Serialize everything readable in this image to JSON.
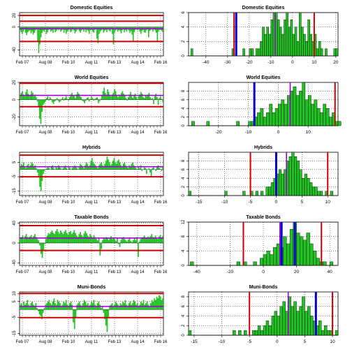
{
  "colors": {
    "bar_fill": "#22c022",
    "bar_stroke": "#000000",
    "outer_line": "#cc0000",
    "mean_line": "#9900cc",
    "hist_blue": "#0000cc",
    "grid": "#000000"
  },
  "time_axis_labels": [
    "Feb 07",
    "Aug 08",
    "Feb 10",
    "Aug 11",
    "Feb 13",
    "Aug 14",
    "Feb 16"
  ],
  "chart_data": [
    {
      "type": "bar",
      "title": "Domestic Equities",
      "xlabel": "",
      "ylabel": "",
      "ylim": [
        -50,
        25
      ],
      "yticks": [
        -40,
        0,
        20
      ],
      "grid": true,
      "series": [
        {
          "values": [
            -6,
            -9,
            -12,
            -8,
            -4,
            -10,
            -14,
            -9,
            -7,
            -6,
            -11,
            -8,
            -13,
            -10,
            -6,
            -4,
            -25,
            -45,
            -30,
            -18,
            -10,
            -6,
            -8,
            -4,
            -12,
            -9,
            -5,
            -3,
            -8,
            -6,
            -10,
            -4,
            -9,
            -7,
            -3,
            -5,
            -2,
            -8,
            -6,
            -4,
            -10,
            -5,
            -12,
            -8,
            -6,
            -3,
            -9,
            -7,
            -4,
            -6,
            -11,
            -8,
            -5,
            -2,
            -7,
            -10,
            -6,
            -4,
            -8,
            -3,
            -9,
            -5,
            -7,
            -12,
            -6,
            -4,
            -8,
            -10,
            -5,
            -3,
            -20,
            -28,
            -12,
            -8,
            -6,
            -4,
            -10,
            -7,
            -5,
            -9,
            -3,
            -6,
            -8,
            -4,
            -12,
            -30,
            -10,
            -6,
            -4,
            -8,
            -5,
            -7,
            -11,
            -6,
            -3,
            -9,
            -5,
            -8,
            -4,
            -6,
            -10,
            -7,
            -13,
            -25,
            -9,
            -5,
            -3,
            -6,
            -4,
            -8,
            -12,
            -7,
            -5,
            -9,
            -10,
            -6,
            -3,
            -18,
            -7,
            -5,
            -2,
            -8,
            -4,
            -6,
            -10,
            -25,
            -8,
            -5,
            -3,
            -7,
            -9
          ]
        }
      ],
      "ref_lines": {
        "red": [
          -25,
          10,
          20
        ],
        "purple": [
          -3
        ]
      }
    },
    {
      "type": "histogram",
      "title": "Domestic Equities",
      "xlim": [
        -48,
        21
      ],
      "xticks": [
        -40,
        -30,
        -20,
        -10,
        0,
        10,
        20
      ],
      "ylim": [
        0,
        6
      ],
      "yticks": [
        0,
        2,
        4,
        6
      ],
      "grid": true,
      "bin_width": 1,
      "bins_start": -47,
      "counts": [
        1,
        0,
        0,
        0,
        0,
        0,
        0,
        0,
        0,
        0,
        0,
        0,
        0,
        0,
        0,
        0,
        0,
        0,
        0,
        1,
        0,
        0,
        0,
        0,
        1,
        0,
        0,
        1,
        1,
        0,
        1,
        1,
        2,
        4,
        3,
        4,
        3,
        5,
        6,
        6,
        5,
        4,
        3,
        5,
        6,
        4,
        5,
        3,
        4,
        2,
        6,
        4,
        3,
        2,
        5,
        3,
        2,
        3,
        1,
        2,
        1,
        0,
        1,
        0,
        0,
        0,
        1,
        1
      ],
      "ref_lines": {
        "red": [
          -27,
          10
        ],
        "purple": [
          -8
        ],
        "blue": [
          -26
        ]
      }
    },
    {
      "type": "bar",
      "title": "World Equities",
      "xlabel": "",
      "ylabel": "",
      "ylim": [
        -30,
        20
      ],
      "yticks": [
        -20,
        0,
        20
      ],
      "grid": true,
      "series": [
        {
          "values": [
            5,
            8,
            10,
            6,
            4,
            9,
            12,
            7,
            5,
            6,
            10,
            8,
            4,
            6,
            3,
            -2,
            -8,
            -22,
            -28,
            -14,
            -6,
            -4,
            -2,
            2,
            4,
            -1,
            3,
            1,
            -3,
            -5,
            -2,
            -1,
            2,
            -1,
            -3,
            -2,
            1,
            3,
            -1,
            2,
            4,
            1,
            -1,
            3,
            6,
            8,
            5,
            4,
            2,
            6,
            9,
            7,
            4,
            3,
            -1,
            -2,
            -4,
            -1,
            2,
            3,
            -2,
            1,
            4,
            2,
            -1,
            1,
            2,
            3,
            -4,
            -2,
            1,
            5,
            10,
            14,
            8,
            6,
            12,
            9,
            5,
            4,
            6,
            8,
            12,
            10,
            5,
            3,
            6,
            4,
            8,
            10,
            7,
            5,
            2,
            -1,
            3,
            6,
            9,
            4,
            2,
            5,
            7,
            3,
            1,
            4,
            6,
            9,
            7,
            3,
            2,
            5,
            4,
            6,
            8,
            3,
            1,
            2,
            -5,
            4,
            7,
            3,
            -6,
            2,
            4,
            1,
            -3
          ]
        }
      ],
      "ref_lines": {
        "red": [
          -8,
          19
        ],
        "purple": [
          5
        ]
      }
    },
    {
      "type": "histogram",
      "title": "World Equities",
      "xlim": [
        -30,
        20
      ],
      "xticks": [
        -20,
        -10,
        0,
        10
      ],
      "ylim": [
        0,
        10
      ],
      "yticks": [
        0,
        2,
        4,
        6,
        8
      ],
      "grid": true,
      "bin_width": 1,
      "bins_start": -29,
      "counts": [
        1,
        0,
        0,
        0,
        0,
        1,
        0,
        0,
        0,
        0,
        0,
        0,
        0,
        0,
        0,
        1,
        0,
        0,
        0,
        1,
        1,
        2,
        3,
        4,
        2,
        3,
        5,
        3,
        4,
        5,
        6,
        5,
        7,
        8,
        9,
        7,
        8,
        10,
        6,
        7,
        5,
        6,
        4,
        3,
        5,
        4,
        2,
        3,
        1,
        1
      ],
      "ref_lines": {
        "red": [
          -8,
          19
        ],
        "purple": [
          4
        ],
        "blue": [
          -8
        ]
      }
    },
    {
      "type": "bar",
      "title": "Hybrids",
      "xlabel": "",
      "ylabel": "",
      "ylim": [
        -18,
        12
      ],
      "yticks": [
        -15,
        -5,
        5
      ],
      "grid": true,
      "series": [
        {
          "values": [
            2,
            4,
            3,
            5,
            2,
            1,
            3,
            4,
            2,
            3,
            5,
            4,
            2,
            3,
            1,
            -2,
            -5,
            -12,
            -15,
            -8,
            -3,
            -1,
            0,
            1,
            2,
            1,
            0,
            2,
            3,
            1,
            0,
            2,
            1,
            3,
            2,
            1,
            0,
            1,
            2,
            3,
            1,
            0,
            2,
            1,
            0,
            1,
            2,
            3,
            2,
            1,
            0,
            2,
            4,
            3,
            2,
            1,
            3,
            5,
            4,
            2,
            3,
            6,
            8,
            5,
            4,
            3,
            2,
            1,
            3,
            4,
            5,
            3,
            2,
            4,
            6,
            9,
            7,
            5,
            3,
            4,
            6,
            8,
            5,
            4,
            6,
            7,
            5,
            3,
            2,
            4,
            5,
            3,
            2,
            1,
            3,
            2,
            4,
            5,
            3,
            2,
            1,
            0,
            2,
            1,
            3,
            -1,
            0,
            2,
            1,
            -3,
            0,
            1,
            -2,
            -5,
            1,
            2,
            0,
            -1,
            2,
            3,
            1,
            0,
            -1,
            2
          ]
        }
      ],
      "ref_lines": {
        "red": [
          -5,
          10
        ],
        "purple": [
          2
        ]
      }
    },
    {
      "type": "histogram",
      "title": "Hybrids",
      "xlim": [
        -17,
        12
      ],
      "xticks": [
        -15,
        -10,
        -5,
        0,
        5,
        10
      ],
      "ylim": [
        0,
        10
      ],
      "yticks": [
        0,
        2,
        4,
        6,
        8
      ],
      "grid": true,
      "bin_width": 0.5,
      "bins_start": -17,
      "counts": [
        1,
        0,
        0,
        0,
        0,
        0,
        0,
        0,
        0,
        0,
        0,
        0,
        0,
        0,
        1,
        0,
        0,
        0,
        0,
        0,
        0,
        1,
        0,
        0,
        1,
        0,
        1,
        0,
        1,
        0,
        2,
        2,
        3,
        4,
        5,
        6,
        5,
        6,
        8,
        9,
        10,
        9,
        8,
        6,
        4,
        5,
        4,
        3,
        2,
        2,
        1,
        1,
        0,
        1,
        0,
        1,
        0
      ],
      "ref_lines": {
        "red": [
          -5,
          10
        ],
        "purple": [
          2
        ],
        "blue": [
          0
        ]
      }
    },
    {
      "type": "bar",
      "title": "Taxable Bonds",
      "xlabel": "",
      "ylabel": "",
      "ylim": [
        -45,
        42
      ],
      "yticks": [
        -40,
        0,
        40
      ],
      "grid": true,
      "series": [
        {
          "values": [
            10,
            12,
            15,
            8,
            14,
            18,
            12,
            9,
            13,
            16,
            10,
            14,
            18,
            12,
            8,
            5,
            -5,
            -22,
            -30,
            -15,
            -2,
            8,
            15,
            20,
            18,
            22,
            25,
            20,
            18,
            24,
            28,
            22,
            19,
            25,
            21,
            18,
            23,
            26,
            20,
            17,
            22,
            24,
            18,
            21,
            26,
            20,
            15,
            12,
            18,
            22,
            16,
            13,
            19,
            24,
            20,
            15,
            12,
            18,
            14,
            10,
            16,
            12,
            8,
            5,
            10,
            -25,
            -12,
            6,
            10,
            8,
            12,
            9,
            6,
            10,
            14,
            8,
            11,
            7,
            4,
            10,
            -2,
            -8,
            6,
            9,
            12,
            8,
            5,
            3,
            7,
            10,
            4,
            2,
            6,
            9,
            5,
            12,
            -28,
            3,
            8,
            10,
            12,
            15,
            9,
            11,
            13,
            10,
            14,
            18,
            12,
            9,
            15,
            11,
            8,
            13,
            16,
            10,
            14
          ]
        }
      ],
      "ref_lines": {
        "red": [
          -15,
          35
        ],
        "purple": [
          10
        ]
      }
    },
    {
      "type": "histogram",
      "title": "Taxable Bonds",
      "xlim": [
        -45,
        45
      ],
      "xticks": [
        -40,
        -20,
        0,
        20,
        40
      ],
      "ylim": [
        0,
        12
      ],
      "yticks": [
        0,
        4,
        8,
        12
      ],
      "grid": true,
      "bin_width": 2,
      "bins_start": -44,
      "counts": [
        1,
        0,
        0,
        0,
        0,
        0,
        0,
        0,
        0,
        0,
        0,
        0,
        0,
        0,
        1,
        0,
        1,
        0,
        0,
        1,
        0,
        2,
        3,
        4,
        3,
        5,
        6,
        5,
        8,
        6,
        10,
        12,
        9,
        8,
        7,
        9,
        6,
        4,
        2,
        1,
        1,
        0,
        1,
        0,
        0
      ],
      "ref_lines": {
        "red": [
          -12,
          35
        ],
        "purple": [
          10
        ],
        "blue": [
          11,
          19
        ]
      }
    },
    {
      "type": "bar",
      "title": "Muni-Bonds",
      "xlabel": "",
      "ylabel": "",
      "ylim": [
        -16,
        11
      ],
      "yticks": [
        -15,
        -5,
        5,
        10
      ],
      "grid": true,
      "series": [
        {
          "values": [
            3,
            4,
            2,
            5,
            3,
            4,
            6,
            3,
            2,
            4,
            5,
            3,
            2,
            4,
            1,
            -1,
            -3,
            -4,
            -6,
            -2,
            1,
            3,
            4,
            5,
            6,
            4,
            3,
            5,
            7,
            4,
            3,
            6,
            5,
            4,
            2,
            3,
            5,
            4,
            6,
            3,
            2,
            4,
            5,
            3,
            -8,
            -12,
            -5,
            3,
            4,
            5,
            3,
            2,
            4,
            6,
            5,
            3,
            4,
            2,
            3,
            5,
            4,
            6,
            3,
            2,
            4,
            5,
            3,
            1,
            2,
            -2,
            -6,
            -10,
            -14,
            -5,
            2,
            3,
            4,
            2,
            3,
            5,
            4,
            3,
            2,
            4,
            3,
            5,
            4,
            6,
            3,
            2,
            4,
            5,
            3,
            4,
            6,
            5,
            3,
            4,
            2,
            3,
            5,
            4,
            6,
            3,
            4,
            5,
            3,
            2,
            4,
            6,
            5,
            7,
            6,
            8,
            7,
            9,
            8,
            6,
            7
          ]
        }
      ],
      "ref_lines": {
        "red": [
          -5,
          10
        ],
        "purple": [
          2
        ]
      }
    },
    {
      "type": "histogram",
      "title": "Muni-Bonds",
      "xlim": [
        -16,
        11
      ],
      "xticks": [
        -15,
        -10,
        -5,
        0,
        5,
        10
      ],
      "ylim": [
        0,
        9
      ],
      "yticks": [
        0,
        2,
        4,
        6,
        8
      ],
      "grid": true,
      "bin_width": 0.5,
      "bins_start": -16,
      "counts": [
        1,
        0,
        0,
        0,
        0,
        0,
        0,
        0,
        0,
        0,
        0,
        0,
        0,
        0,
        0,
        0,
        1,
        0,
        1,
        0,
        1,
        0,
        0,
        1,
        1,
        2,
        1,
        2,
        3,
        2,
        4,
        5,
        4,
        6,
        7,
        5,
        8,
        6,
        7,
        5,
        6,
        8,
        5,
        6,
        4,
        3,
        2,
        3,
        1,
        2,
        1,
        1,
        0,
        1
      ],
      "ref_lines": {
        "red": [
          -5,
          10
        ],
        "purple": [
          2
        ],
        "blue": [
          7
        ]
      }
    }
  ]
}
